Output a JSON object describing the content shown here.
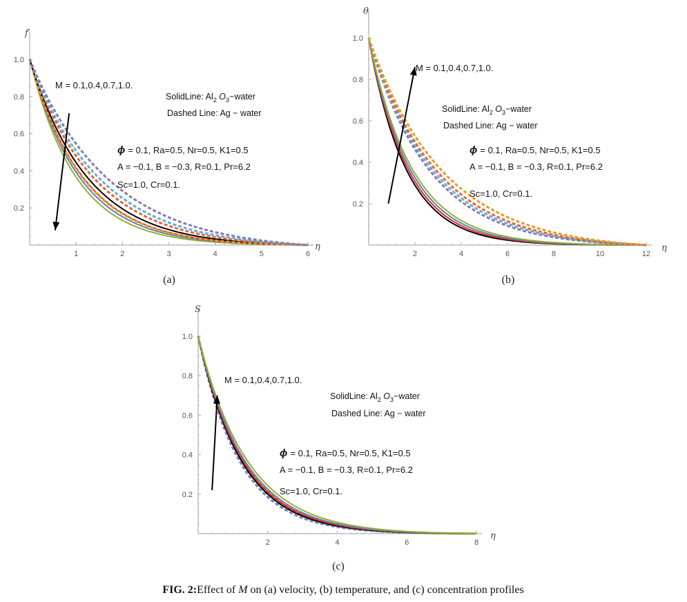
{
  "figure": {
    "caption_bold": "FIG. 2:",
    "caption_pre": "Effect of ",
    "caption_symbol": "M",
    "caption_post": " on (a) velocity, (b) temperature, and (c) concentration profiles"
  },
  "colors": {
    "M=0.1": "#5e81b5",
    "M=0.4": "#e19c24",
    "M=0.7": "#8fb032",
    "M=1.0": "#eb6235",
    "extra_dashed_1": "#8778b3",
    "extra_dashed_2": "#5ab0d8",
    "black_line": "#000000",
    "red_line": "#e02a2a"
  },
  "chart_data": [
    {
      "panel": "(a)",
      "type": "line",
      "ylabel": "f′",
      "xlabel": "η",
      "xlim": [
        0,
        6
      ],
      "ylim": [
        0,
        1.0
      ],
      "xticks": [
        "1",
        "2",
        "3",
        "4",
        "5",
        "6"
      ],
      "yticks": [
        "0.2",
        "0.4",
        "0.6",
        "0.8",
        "1.0"
      ],
      "arrow": {
        "from": [
          0.85,
          0.71
        ],
        "to": [
          0.55,
          0.08
        ],
        "direction": "down"
      },
      "annotations": {
        "m_values": "M = 0.1,0.4,0.7,1.0.",
        "solid_prefix": "SolidLine: Al",
        "solid_sub2": "2",
        "solid_mid": " O",
        "solid_sub3": "3",
        "solid_suffix": "−water",
        "dashed": "Dashed Line: Ag − water",
        "params1": "= 0.1, Ra=0.5, Nr=0.5, K1=0.5",
        "phi": "ϕ",
        "params2": "A = −0.1, B = −0.3, R=0.1, Pr=6.2",
        "params3": "Sc=1.0, Cr=0.1."
      },
      "series": [
        {
          "style": "solid",
          "color": "#8fb032",
          "decay": 1.0,
          "values": [
            [
              0,
              1.0
            ],
            [
              0.5,
              0.6
            ],
            [
              1,
              0.36
            ],
            [
              1.5,
              0.215
            ],
            [
              2,
              0.13
            ],
            [
              3,
              0.045
            ],
            [
              4,
              0.016
            ],
            [
              5,
              0.005
            ],
            [
              6,
              0.0
            ]
          ]
        },
        {
          "style": "solid",
          "color": "#5e81b5",
          "decay": 0.93,
          "values": [
            [
              0,
              1.0
            ],
            [
              1,
              0.39
            ],
            [
              2,
              0.155
            ],
            [
              3,
              0.06
            ],
            [
              4,
              0.022
            ],
            [
              6,
              0.0
            ]
          ]
        },
        {
          "style": "solid",
          "color": "#e02a2a",
          "decay": 0.87,
          "values": [
            [
              0,
              1.0
            ],
            [
              1,
              0.42
            ],
            [
              2,
              0.175
            ],
            [
              3,
              0.072
            ],
            [
              4,
              0.028
            ],
            [
              6,
              0.0
            ]
          ]
        },
        {
          "style": "solid",
          "color": "#000000",
          "decay": 0.8,
          "values": [
            [
              0,
              1.0
            ],
            [
              1,
              0.45
            ],
            [
              2,
              0.2
            ],
            [
              3,
              0.09
            ],
            [
              4,
              0.04
            ],
            [
              6,
              0.0
            ]
          ]
        },
        {
          "style": "dashed",
          "color": "#e19c24",
          "decay": 0.88,
          "values": [
            [
              0,
              1.0
            ],
            [
              1,
              0.42
            ],
            [
              2,
              0.18
            ],
            [
              3,
              0.075
            ],
            [
              4,
              0.03
            ],
            [
              6,
              0.0
            ]
          ]
        },
        {
          "style": "dashed",
          "color": "#eb6235",
          "decay": 0.72,
          "values": [
            [
              0,
              1.0
            ],
            [
              1,
              0.49
            ],
            [
              2,
              0.24
            ],
            [
              3,
              0.12
            ],
            [
              4,
              0.058
            ],
            [
              6,
              0.0
            ]
          ]
        },
        {
          "style": "dashed",
          "color": "#5ab0d8",
          "decay": 0.66,
          "values": [
            [
              0,
              1.0
            ],
            [
              1,
              0.52
            ],
            [
              2,
              0.27
            ],
            [
              3,
              0.14
            ],
            [
              4,
              0.07
            ],
            [
              6,
              0.0
            ]
          ]
        },
        {
          "style": "dashed",
          "color": "#8778b3",
          "decay": 0.58,
          "values": [
            [
              0,
              1.0
            ],
            [
              1,
              0.56
            ],
            [
              2,
              0.31
            ],
            [
              3,
              0.175
            ],
            [
              4,
              0.098
            ],
            [
              6,
              0.0
            ]
          ]
        }
      ]
    },
    {
      "panel": "(b)",
      "type": "line",
      "ylabel": "θ",
      "xlabel": "η",
      "xlim": [
        0,
        12
      ],
      "ylim": [
        0,
        1.0
      ],
      "xticks": [
        "2",
        "4",
        "6",
        "8",
        "10",
        "12"
      ],
      "yticks": [
        "0.2",
        "0.4",
        "0.6",
        "0.8",
        "1.0"
      ],
      "arrow": {
        "from": [
          0.85,
          0.2
        ],
        "to": [
          2.0,
          0.86
        ],
        "direction": "up"
      },
      "annotations": {
        "m_values": "M = 0.1,0.4,0.7,1.0.",
        "solid_prefix": "SolidLine: Al",
        "solid_sub2": "2",
        "solid_mid": " O",
        "solid_sub3": "3",
        "solid_suffix": "−water",
        "dashed": "Dashed Line: Ag − water",
        "params1": "= 0.1, Ra=0.5, Nr=0.5, K1=0.5",
        "phi": "ϕ",
        "params2": "A = −0.1, B = −0.3, R=0.1, Pr=6.2",
        "params3": "Sc=1.0, Cr=0.1."
      },
      "series": [
        {
          "style": "solid",
          "color": "#000000",
          "decay": 0.62,
          "values": [
            [
              0,
              1.0
            ],
            [
              2,
              0.29
            ],
            [
              4,
              0.084
            ],
            [
              6,
              0.024
            ],
            [
              12,
              0.0
            ]
          ]
        },
        {
          "style": "solid",
          "color": "#e02a2a",
          "decay": 0.59,
          "values": [
            [
              0,
              1.0
            ],
            [
              2,
              0.31
            ],
            [
              4,
              0.094
            ],
            [
              6,
              0.029
            ],
            [
              12,
              0.0
            ]
          ]
        },
        {
          "style": "solid",
          "color": "#5e81b5",
          "decay": 0.56,
          "values": [
            [
              0,
              1.0
            ],
            [
              2,
              0.33
            ],
            [
              4,
              0.106
            ],
            [
              6,
              0.035
            ],
            [
              12,
              0.0
            ]
          ]
        },
        {
          "style": "solid",
          "color": "#8fb032",
          "decay": 0.53,
          "values": [
            [
              0,
              1.0
            ],
            [
              2,
              0.35
            ],
            [
              4,
              0.12
            ],
            [
              6,
              0.042
            ],
            [
              12,
              0.0
            ]
          ]
        },
        {
          "style": "dashed",
          "color": "#8778b3",
          "decay": 0.38,
          "values": [
            [
              0,
              1.0
            ],
            [
              2,
              0.47
            ],
            [
              4,
              0.22
            ],
            [
              6,
              0.1
            ],
            [
              8,
              0.048
            ],
            [
              12,
              0.0
            ]
          ]
        },
        {
          "style": "dashed",
          "color": "#5ab0d8",
          "decay": 0.36,
          "values": [
            [
              0,
              1.0
            ],
            [
              2,
              0.49
            ],
            [
              4,
              0.24
            ],
            [
              6,
              0.115
            ],
            [
              8,
              0.056
            ],
            [
              12,
              0.0
            ]
          ]
        },
        {
          "style": "dashed",
          "color": "#eb6235",
          "decay": 0.34,
          "values": [
            [
              0,
              1.0
            ],
            [
              2,
              0.51
            ],
            [
              4,
              0.26
            ],
            [
              6,
              0.13
            ],
            [
              8,
              0.066
            ],
            [
              12,
              0.0
            ]
          ]
        },
        {
          "style": "dashed",
          "color": "#e19c24",
          "decay": 0.31,
          "values": [
            [
              0,
              1.0
            ],
            [
              2,
              0.54
            ],
            [
              4,
              0.29
            ],
            [
              6,
              0.156
            ],
            [
              8,
              0.084
            ],
            [
              12,
              0.0
            ]
          ]
        }
      ]
    },
    {
      "panel": "(c)",
      "type": "line",
      "ylabel": "S",
      "xlabel": "η",
      "xlim": [
        0,
        8
      ],
      "ylim": [
        0,
        1.0
      ],
      "xticks": [
        "2",
        "4",
        "6",
        "8"
      ],
      "yticks": [
        "0.2",
        "0.4",
        "0.6",
        "0.8",
        "1.0"
      ],
      "arrow": {
        "from": [
          0.4,
          0.22
        ],
        "to": [
          0.55,
          0.7
        ],
        "direction": "up"
      },
      "annotations": {
        "m_values": "M = 0.1,0.4,0.7,1.0.",
        "solid_prefix": "SolidLine: Al",
        "solid_sub2": "2",
        "solid_mid": " O",
        "solid_sub3": "3",
        "solid_suffix": "−water",
        "dashed": "Dashed Line: Ag − water",
        "params1": "= 0.1, Ra=0.5, Nr=0.5, K1=0.5",
        "phi": "ϕ",
        "params2": "A = −0.1, B = −0.3, R=0.1, Pr=6.2",
        "params3": "Sc=1.0, Cr=0.1."
      },
      "series": [
        {
          "style": "dashed",
          "color": "#8778b3",
          "decay": 0.84,
          "values": [
            [
              0,
              1.0
            ],
            [
              1,
              0.43
            ],
            [
              2,
              0.19
            ],
            [
              3,
              0.08
            ],
            [
              4,
              0.035
            ],
            [
              8,
              0.0
            ]
          ]
        },
        {
          "style": "dashed",
          "color": "#5ab0d8",
          "decay": 0.81,
          "values": [
            [
              0,
              1.0
            ],
            [
              1,
              0.44
            ],
            [
              2,
              0.2
            ],
            [
              3,
              0.088
            ],
            [
              4,
              0.039
            ],
            [
              8,
              0.0
            ]
          ]
        },
        {
          "style": "dashed",
          "color": "#eb6235",
          "decay": 0.78,
          "values": [
            [
              0,
              1.0
            ],
            [
              1,
              0.46
            ],
            [
              2,
              0.21
            ],
            [
              3,
              0.096
            ],
            [
              4,
              0.044
            ],
            [
              8,
              0.0
            ]
          ]
        },
        {
          "style": "dashed",
          "color": "#e19c24",
          "decay": 0.75,
          "values": [
            [
              0,
              1.0
            ],
            [
              1,
              0.47
            ],
            [
              2,
              0.22
            ],
            [
              3,
              0.105
            ],
            [
              4,
              0.05
            ],
            [
              8,
              0.0
            ]
          ]
        },
        {
          "style": "solid",
          "color": "#000000",
          "decay": 0.8,
          "values": [
            [
              0,
              1.0
            ],
            [
              1,
              0.45
            ],
            [
              2,
              0.2
            ],
            [
              3,
              0.09
            ],
            [
              4,
              0.04
            ],
            [
              8,
              0.0
            ]
          ]
        },
        {
          "style": "solid",
          "color": "#e02a2a",
          "decay": 0.77,
          "values": [
            [
              0,
              1.0
            ],
            [
              1,
              0.46
            ],
            [
              2,
              0.215
            ],
            [
              3,
              0.1
            ],
            [
              4,
              0.046
            ],
            [
              8,
              0.0
            ]
          ]
        },
        {
          "style": "solid",
          "color": "#5e81b5",
          "decay": 0.74,
          "values": [
            [
              0,
              1.0
            ],
            [
              1,
              0.48
            ],
            [
              2,
              0.228
            ],
            [
              3,
              0.108
            ],
            [
              4,
              0.052
            ],
            [
              8,
              0.0
            ]
          ]
        },
        {
          "style": "solid",
          "color": "#8fb032",
          "decay": 0.7,
          "values": [
            [
              0,
              1.0
            ],
            [
              1,
              0.5
            ],
            [
              2,
              0.246
            ],
            [
              3,
              0.122
            ],
            [
              4,
              0.061
            ],
            [
              8,
              0.0
            ]
          ]
        }
      ]
    }
  ]
}
